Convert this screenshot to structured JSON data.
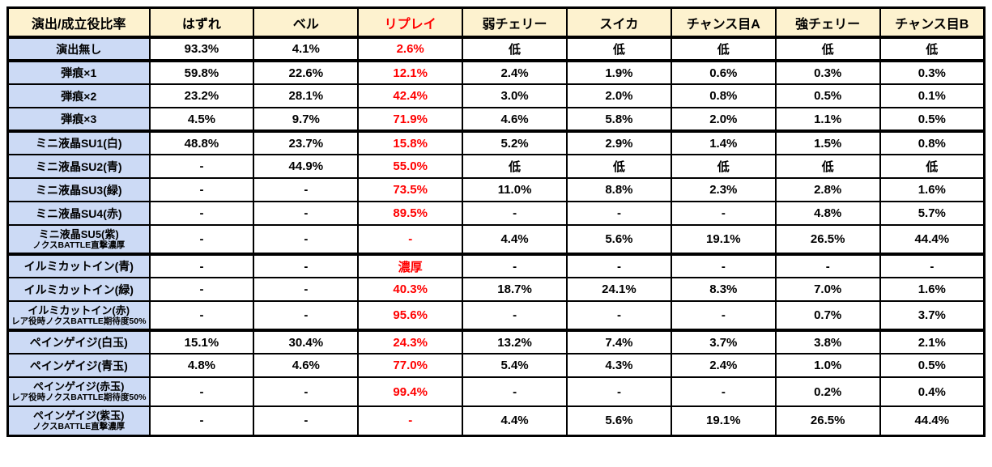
{
  "colors": {
    "header_bg": "#fdf2cf",
    "label_bg": "#ccdaf5",
    "accent_red": "#ff0000",
    "border": "#000000",
    "text": "#000000"
  },
  "table": {
    "header": {
      "label_col": "演出/成立役比率",
      "columns": [
        "はずれ",
        "ベル",
        "リプレイ",
        "弱チェリー",
        "スイカ",
        "チャンス目A",
        "強チェリー",
        "チャンス目B"
      ],
      "red_column": "リプレイ"
    },
    "sections": [
      {
        "name": "no-effect",
        "rows": [
          {
            "label": "演出無し",
            "values": [
              "93.3%",
              "4.1%",
              "2.6%",
              "低",
              "低",
              "低",
              "低",
              "低"
            ]
          }
        ]
      },
      {
        "name": "bullet-marks",
        "rows": [
          {
            "label": "弾痕×1",
            "values": [
              "59.8%",
              "22.6%",
              "12.1%",
              "2.4%",
              "1.9%",
              "0.6%",
              "0.3%",
              "0.3%"
            ]
          },
          {
            "label": "弾痕×2",
            "values": [
              "23.2%",
              "28.1%",
              "42.4%",
              "3.0%",
              "2.0%",
              "0.8%",
              "0.5%",
              "0.1%"
            ]
          },
          {
            "label": "弾痕×3",
            "values": [
              "4.5%",
              "9.7%",
              "71.9%",
              "4.6%",
              "5.8%",
              "2.0%",
              "1.1%",
              "0.5%"
            ]
          }
        ]
      },
      {
        "name": "mini-lcd",
        "rows": [
          {
            "label": "ミニ液晶SU1(白)",
            "values": [
              "48.8%",
              "23.7%",
              "15.8%",
              "5.2%",
              "2.9%",
              "1.4%",
              "1.5%",
              "0.8%"
            ]
          },
          {
            "label": "ミニ液晶SU2(青)",
            "values": [
              "-",
              "44.9%",
              "55.0%",
              "低",
              "低",
              "低",
              "低",
              "低"
            ]
          },
          {
            "label": "ミニ液晶SU3(緑)",
            "values": [
              "-",
              "-",
              "73.5%",
              "11.0%",
              "8.8%",
              "2.3%",
              "2.8%",
              "1.6%"
            ]
          },
          {
            "label": "ミニ液晶SU4(赤)",
            "values": [
              "-",
              "-",
              "89.5%",
              "-",
              "-",
              "-",
              "4.8%",
              "5.7%"
            ]
          },
          {
            "label": "ミニ液晶SU5(紫)",
            "sublabel": "ノクスBATTLE直撃濃厚",
            "values": [
              "-",
              "-",
              "-",
              "4.4%",
              "5.6%",
              "19.1%",
              "26.5%",
              "44.4%"
            ]
          }
        ]
      },
      {
        "name": "illumi-cutin",
        "rows": [
          {
            "label": "イルミカットイン(青)",
            "values": [
              "-",
              "-",
              "濃厚",
              "-",
              "-",
              "-",
              "-",
              "-"
            ]
          },
          {
            "label": "イルミカットイン(緑)",
            "values": [
              "-",
              "-",
              "40.3%",
              "18.7%",
              "24.1%",
              "8.3%",
              "7.0%",
              "1.6%"
            ]
          },
          {
            "label": "イルミカットイン(赤)",
            "sublabel": "レア役時ノクスBATTLE期待度50%",
            "values": [
              "-",
              "-",
              "95.6%",
              "-",
              "-",
              "-",
              "0.7%",
              "3.7%"
            ]
          }
        ]
      },
      {
        "name": "pain-gauge",
        "rows": [
          {
            "label": "ペインゲイジ(白玉)",
            "values": [
              "15.1%",
              "30.4%",
              "24.3%",
              "13.2%",
              "7.4%",
              "3.7%",
              "3.8%",
              "2.1%"
            ]
          },
          {
            "label": "ペインゲイジ(青玉)",
            "values": [
              "4.8%",
              "4.6%",
              "77.0%",
              "5.4%",
              "4.3%",
              "2.4%",
              "1.0%",
              "0.5%"
            ]
          },
          {
            "label": "ペインゲイジ(赤玉)",
            "sublabel": "レア役時ノクスBATTLE期待度50%",
            "values": [
              "-",
              "-",
              "99.4%",
              "-",
              "-",
              "-",
              "0.2%",
              "0.4%"
            ]
          },
          {
            "label": "ペインゲイジ(紫玉)",
            "sublabel": "ノクスBATTLE直撃濃厚",
            "values": [
              "-",
              "-",
              "-",
              "4.4%",
              "5.6%",
              "19.1%",
              "26.5%",
              "44.4%"
            ]
          }
        ]
      }
    ]
  }
}
